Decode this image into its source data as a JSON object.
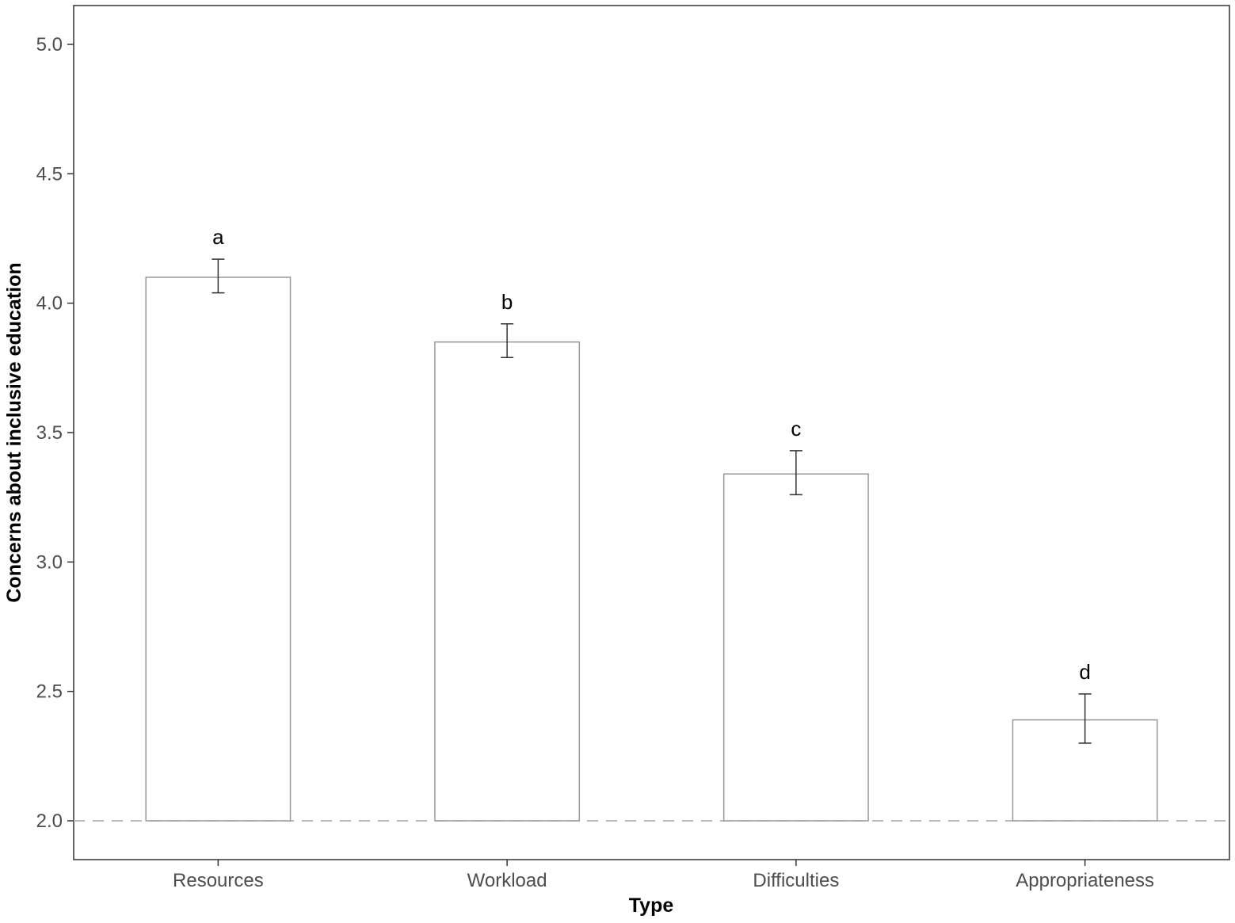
{
  "chart_data": {
    "type": "bar",
    "categories": [
      "Resources",
      "Workload",
      "Difficulties",
      "Appropriateness"
    ],
    "values": [
      4.1,
      3.85,
      3.34,
      2.39
    ],
    "error_low": [
      4.04,
      3.79,
      3.26,
      2.3
    ],
    "error_high": [
      4.17,
      3.92,
      3.43,
      2.49
    ],
    "group_labels": [
      "a",
      "b",
      "c",
      "d"
    ],
    "xlabel": "Type",
    "ylabel": "Concerns about inclusive education",
    "ylim": [
      1.85,
      5.15
    ],
    "y_ticks": [
      "2.0",
      "2.5",
      "3.0",
      "3.5",
      "4.0",
      "4.5",
      "5.0"
    ],
    "bar_baseline": 2.0,
    "reference_line": 2.0,
    "grid": false,
    "legend": "none",
    "colors": {
      "bar_fill": "#ffffff",
      "bar_stroke": "#999999",
      "error_bar": "#333333",
      "reference_line": "#bbbbbb",
      "panel_border": "#333333"
    }
  }
}
